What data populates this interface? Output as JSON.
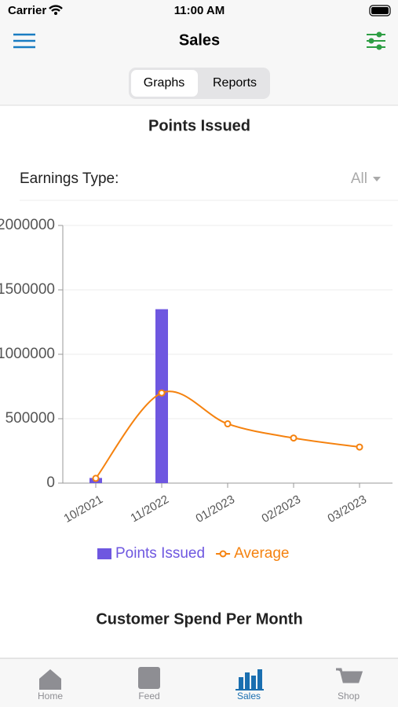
{
  "status_bar": {
    "carrier": "Carrier",
    "time": "11:00 AM"
  },
  "nav": {
    "title": "Sales"
  },
  "segments": [
    "Graphs",
    "Reports"
  ],
  "filter": {
    "label": "Earnings Type:",
    "value": "All"
  },
  "chart_data": {
    "type": "bar",
    "title": "Points Issued",
    "categories": [
      "10/2021",
      "11/2022",
      "01/2023",
      "02/2023",
      "03/2023"
    ],
    "series": [
      {
        "name": "Points Issued",
        "type": "bar",
        "color": "#6e57e0",
        "values": [
          40000,
          1350000,
          0,
          0,
          0
        ]
      },
      {
        "name": "Average",
        "type": "line",
        "color": "#f5820f",
        "values": [
          37000,
          700000,
          460000,
          350000,
          280000
        ]
      }
    ],
    "ylim": [
      0,
      2000000
    ],
    "yticks": [
      0,
      500000,
      1000000,
      1500000,
      2000000
    ],
    "grid": true
  },
  "next_section": {
    "title": "Customer Spend Per Month"
  },
  "tabs": [
    "Home",
    "Feed",
    "Sales",
    "Shop"
  ]
}
